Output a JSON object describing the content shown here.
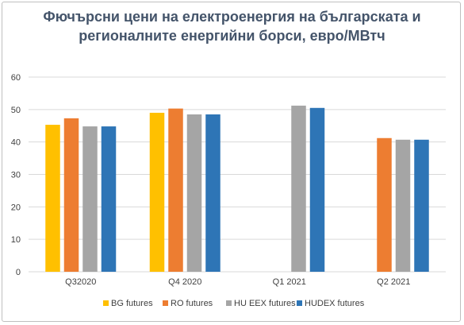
{
  "chart_data": {
    "type": "bar",
    "title_lines": [
      "Фючърсни цени на електроенергия на българската и",
      "регионалните енергийни борси,  евро/МВтч"
    ],
    "categories": [
      "Q32020",
      "Q4 2020",
      "Q1 2021",
      "Q2 2021"
    ],
    "series": [
      {
        "name": "BG futures",
        "color": "#ffc000",
        "values": [
          45.3,
          49.0,
          null,
          null
        ]
      },
      {
        "name": "RO futures",
        "color": "#ed7d31",
        "values": [
          47.3,
          50.3,
          null,
          41.2
        ]
      },
      {
        "name": "HU EEX futures",
        "color": "#a5a5a5",
        "values": [
          44.8,
          48.5,
          51.2,
          40.7
        ]
      },
      {
        "name": "HUDEX futures",
        "color": "#2e75b6",
        "values": [
          44.8,
          48.5,
          50.5,
          40.7
        ]
      }
    ],
    "xlabel": "",
    "ylabel": "",
    "ylim": [
      0,
      60
    ],
    "yticks": [
      0,
      10,
      20,
      30,
      40,
      50,
      60
    ],
    "grid": true,
    "legend_position": "bottom",
    "gridline_color": "#d9d9d9"
  }
}
